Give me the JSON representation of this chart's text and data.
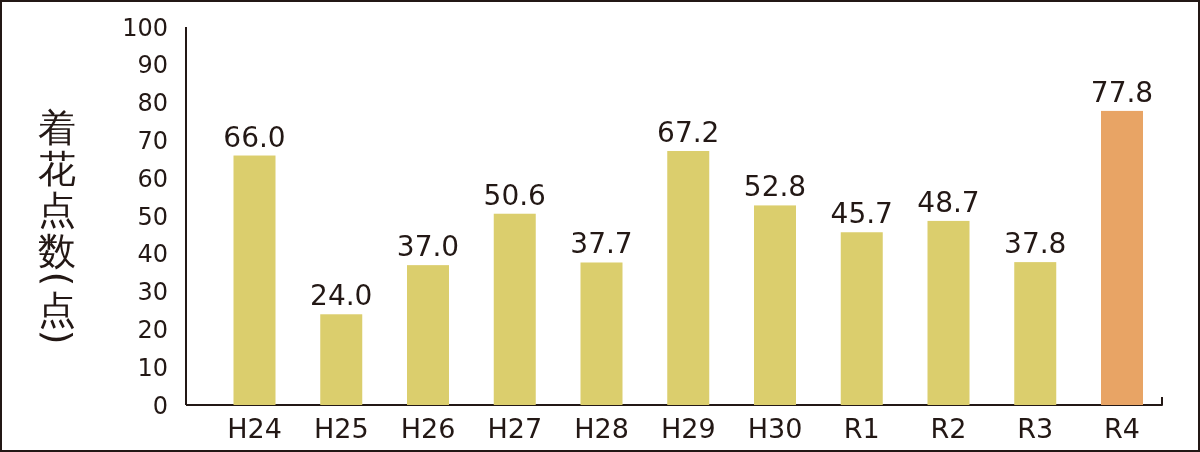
{
  "chart_data": {
    "type": "bar",
    "ylabel": "着花点数(点)",
    "categories": [
      "H24",
      "H25",
      "H26",
      "H27",
      "H28",
      "H29",
      "H30",
      "R1",
      "R2",
      "R3",
      "R4"
    ],
    "values": [
      66.0,
      24.0,
      37.0,
      50.6,
      37.7,
      67.2,
      52.8,
      45.7,
      48.7,
      37.8,
      77.8
    ],
    "value_labels": [
      "66.0",
      "24.0",
      "37.0",
      "50.6",
      "37.7",
      "67.2",
      "52.8",
      "45.7",
      "48.7",
      "37.8",
      "77.8"
    ],
    "colors": [
      "#dbce6d",
      "#dbce6d",
      "#dbce6d",
      "#dbce6d",
      "#dbce6d",
      "#dbce6d",
      "#dbce6d",
      "#dbce6d",
      "#dbce6d",
      "#dbce6d",
      "#e8a465"
    ],
    "ylim": [
      0,
      100
    ],
    "yticks": [
      0,
      10,
      20,
      30,
      40,
      50,
      60,
      70,
      80,
      90,
      100
    ]
  }
}
